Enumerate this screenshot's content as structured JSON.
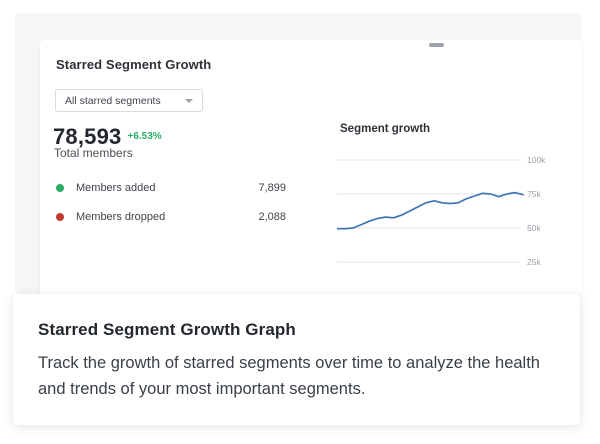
{
  "widget": {
    "title": "Starred Segment Growth",
    "dropdown": {
      "value": "All starred segments"
    },
    "metric": {
      "value": "78,593",
      "delta": "+6.53%",
      "delta_color": "#27b068",
      "label": "Total members"
    },
    "legend": [
      {
        "label": "Members added",
        "value": "7,899",
        "color": "#2bad66"
      },
      {
        "label": "Members dropped",
        "value": "2,088",
        "color": "#c2392e"
      }
    ]
  },
  "chart_data": {
    "type": "line",
    "title": "Segment growth",
    "xlabel": "",
    "ylabel": "",
    "ylim": [
      25000,
      100000
    ],
    "grid": true,
    "legend_position": "none",
    "grid_color": "#e4e6e9",
    "tick_color": "#9aa1a8",
    "line_color": "#3e74b4",
    "y_gridlines": [
      {
        "label": "100k",
        "value": 100000
      },
      {
        "label": "75k",
        "value": 75000
      },
      {
        "label": "50k",
        "value": 50000
      },
      {
        "label": "25k",
        "value": 25000
      }
    ],
    "series": [
      {
        "name": "Segment growth",
        "values": [
          49500,
          49500,
          50000,
          52500,
          55000,
          57000,
          58000,
          57500,
          59500,
          62500,
          65500,
          68500,
          70000,
          68500,
          68000,
          68500,
          71500,
          73500,
          75500,
          75000,
          73000,
          75000,
          76000,
          74500
        ]
      }
    ]
  },
  "info_card": {
    "title": "Starred Segment Growth Graph",
    "description": "Track the growth of starred segments over time to analyze the health and trends of your most important segments."
  }
}
